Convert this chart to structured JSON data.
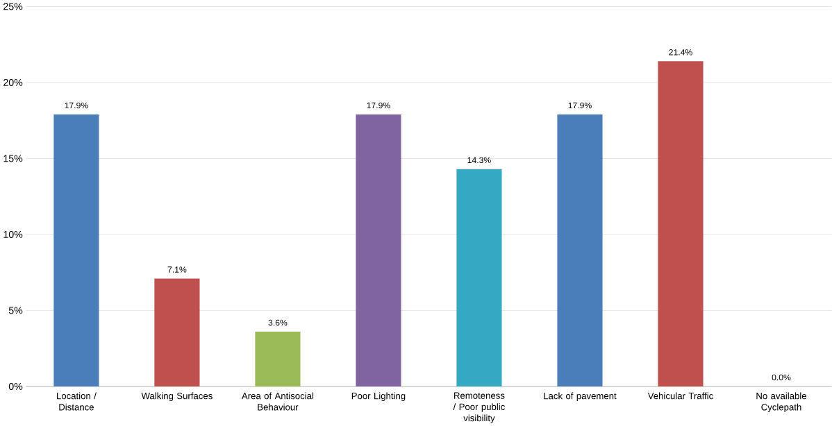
{
  "chart_data": {
    "type": "bar",
    "categories": [
      "Location / Distance",
      "Walking Surfaces",
      "Area of Antisocial Behaviour",
      "Poor Lighting",
      "Remoteness / Poor public visibility",
      "Lack of pavement",
      "Vehicular Traffic",
      "No available Cyclepath"
    ],
    "values": [
      17.9,
      7.1,
      3.6,
      17.9,
      14.3,
      17.9,
      21.4,
      0.0
    ],
    "value_labels": [
      "17.9%",
      "7.1%",
      "3.6%",
      "17.9%",
      "14.3%",
      "17.9%",
      "21.4%",
      "0.0%"
    ],
    "colors": [
      "#4a7ebb",
      "#c0504d",
      "#9bbb59",
      "#8064a2",
      "#35a9c4",
      "#4a7ebb",
      "#c0504d",
      "#9bbb59"
    ],
    "ylim": [
      0,
      25
    ],
    "yticks": [
      {
        "value": 0,
        "label": "0%"
      },
      {
        "value": 5,
        "label": "5%"
      },
      {
        "value": 10,
        "label": "10%"
      },
      {
        "value": 15,
        "label": "15%"
      },
      {
        "value": 20,
        "label": "20%"
      },
      {
        "value": 25,
        "label": "25%"
      }
    ],
    "grid": "y"
  }
}
